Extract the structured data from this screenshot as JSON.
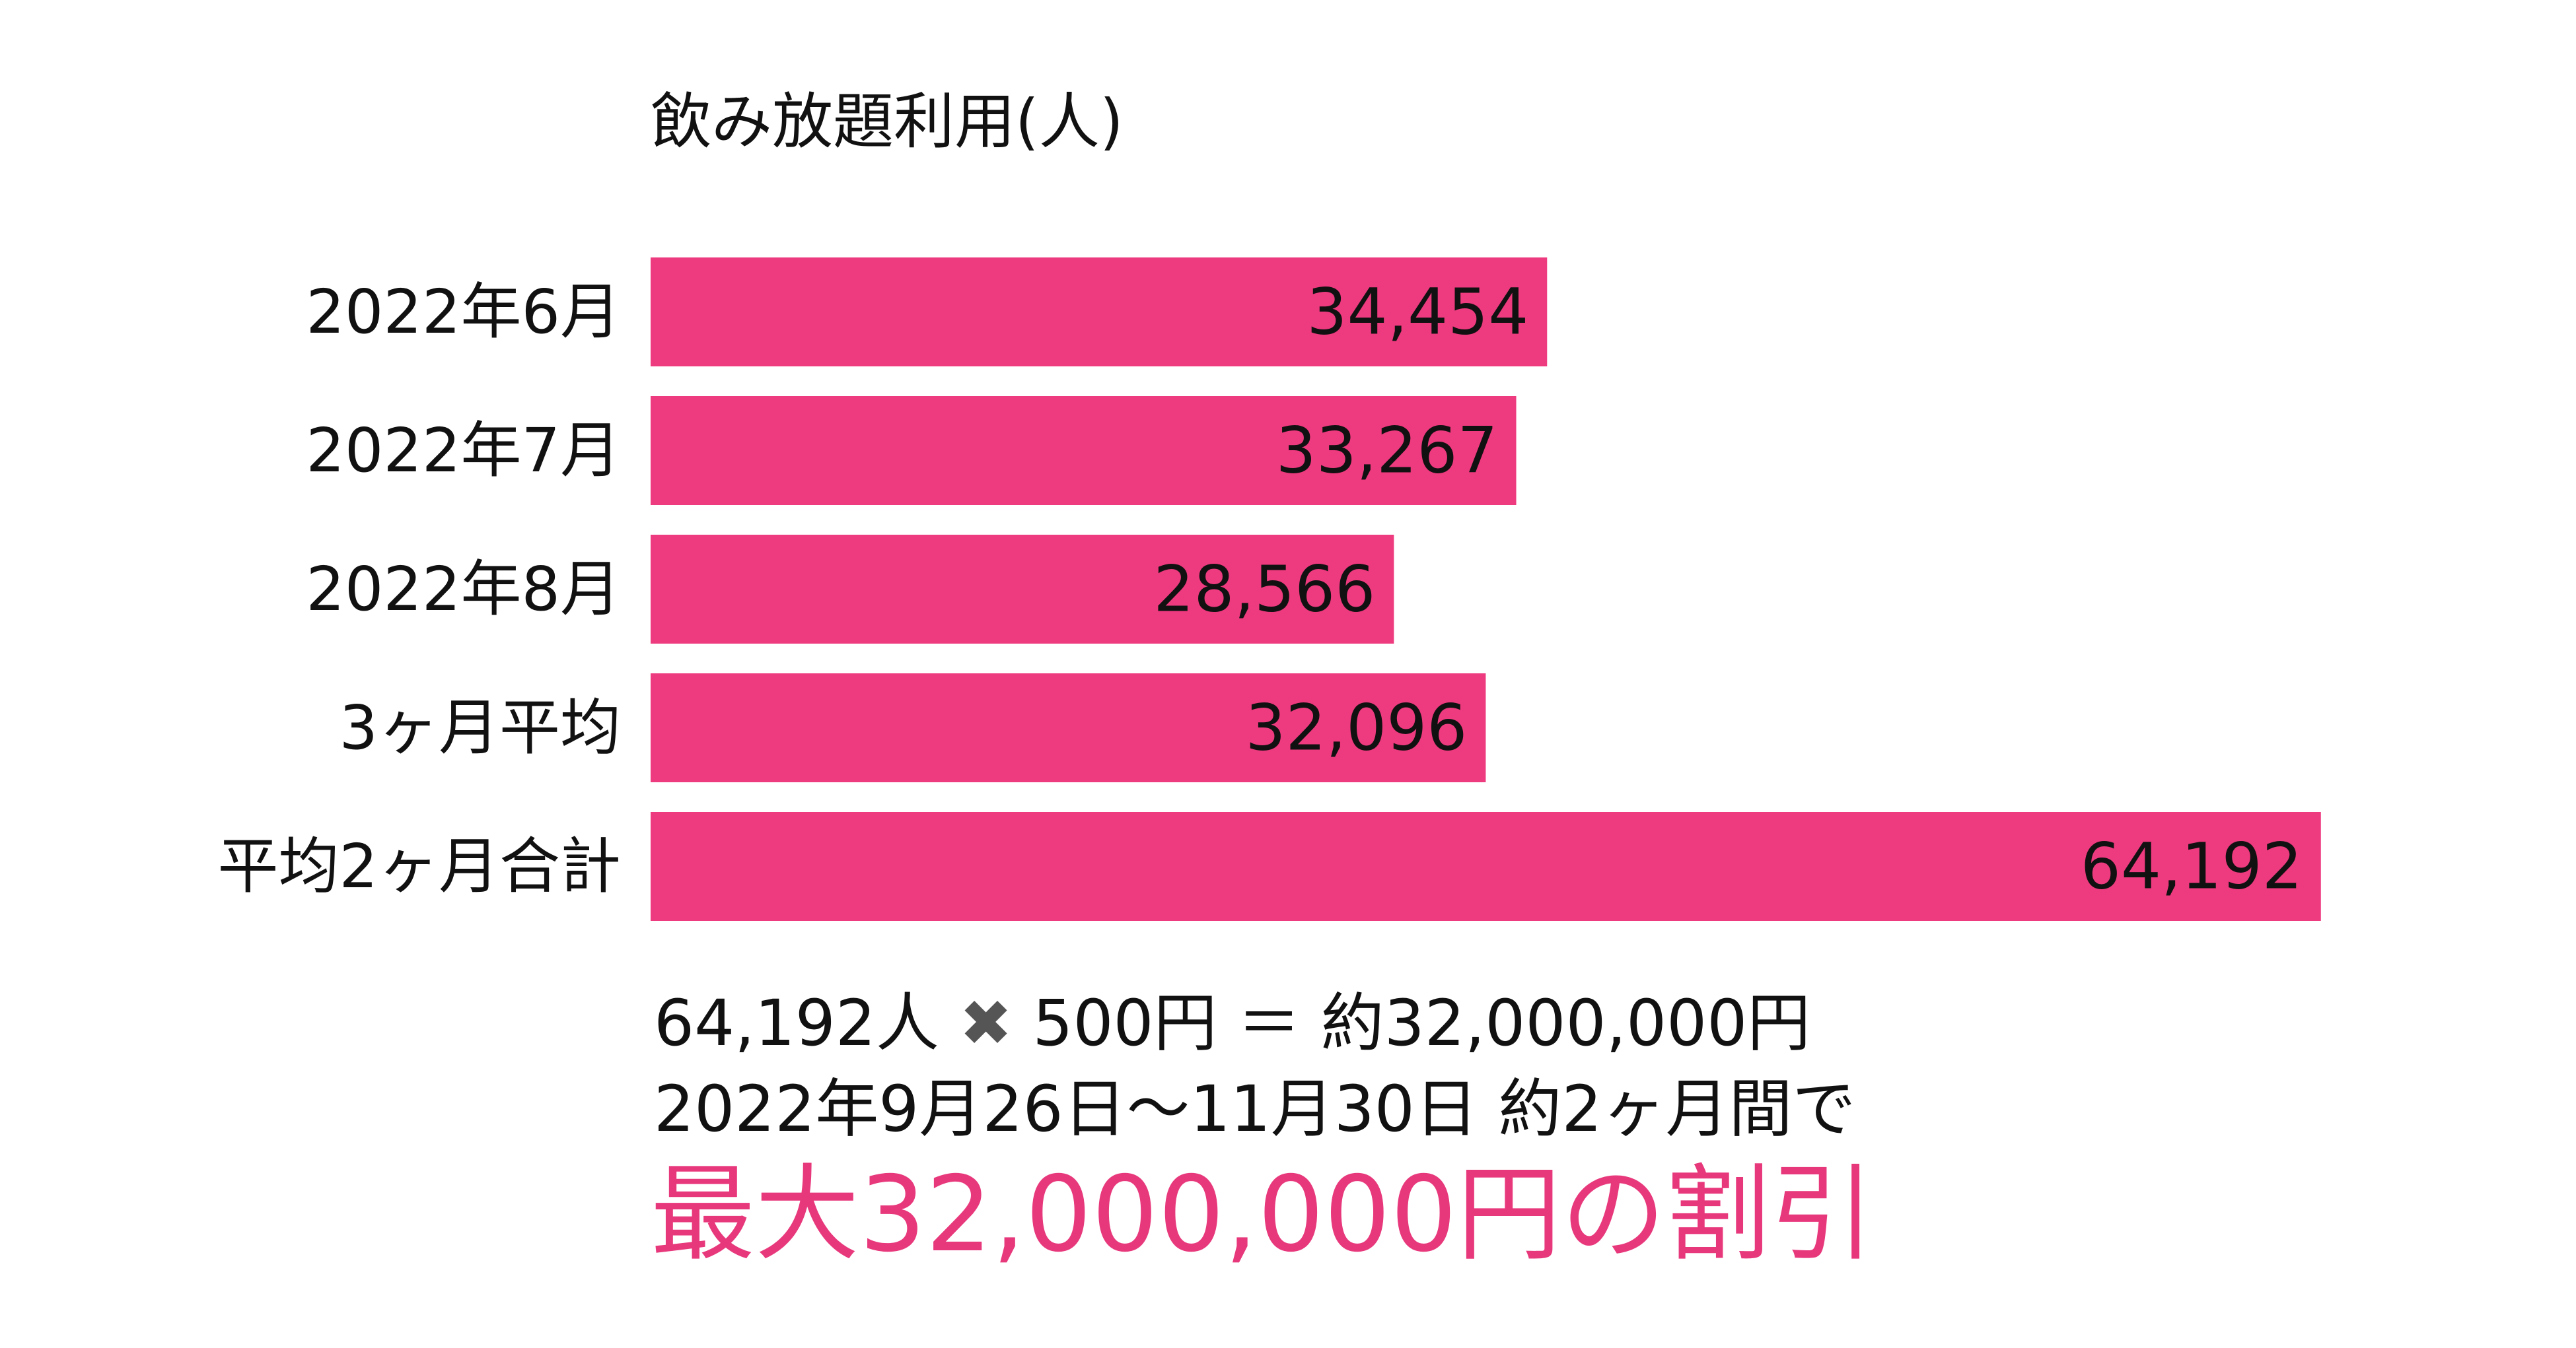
{
  "title": "飲み放題利用(人)",
  "chart_data": {
    "type": "bar",
    "orientation": "horizontal",
    "categories": [
      "2022年6月",
      "2022年7月",
      "2022年8月",
      "3ヶ月平均",
      "平均2ヶ月合計"
    ],
    "values": [
      34454,
      33267,
      28566,
      32096,
      64192
    ],
    "labels": [
      "34,454",
      "33,267",
      "28,566",
      "32,096",
      "64,192"
    ],
    "xlim": [
      0,
      66000
    ],
    "grid": false,
    "color": "#ee3a7f"
  },
  "summary": {
    "line1_left": "64,192人",
    "times": "✖",
    "line1_right": "500円 ＝ 約32,000,000円",
    "line2": "2022年9月26日〜11月30日 約2ヶ月間で"
  },
  "highlight": "最大32,000,000円の割引",
  "colors": {
    "bar": "#ee3a7f",
    "highlight": "#e8387c",
    "text": "#111111"
  }
}
